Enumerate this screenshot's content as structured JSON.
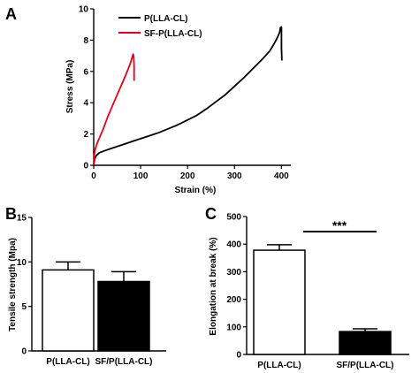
{
  "panels": [
    "A",
    "B",
    "C"
  ],
  "chart_data": [
    {
      "panel": "A",
      "type": "line",
      "xlabel": "Strain (%)",
      "ylabel": "Stress (MPa)",
      "xlim": [
        0,
        420
      ],
      "ylim": [
        0,
        10
      ],
      "xticks": [
        "0",
        "100",
        "200",
        "300",
        "400"
      ],
      "yticks": [
        "0",
        "2",
        "4",
        "6",
        "8",
        "10"
      ],
      "legend_position": "top-center",
      "series": [
        {
          "name": "P(LLA-CL)",
          "color": "#000000",
          "points": [
            [
              0,
              0
            ],
            [
              2,
              0.4
            ],
            [
              5,
              0.6
            ],
            [
              12,
              0.8
            ],
            [
              25,
              0.95
            ],
            [
              40,
              1.1
            ],
            [
              60,
              1.3
            ],
            [
              80,
              1.5
            ],
            [
              100,
              1.7
            ],
            [
              120,
              1.9
            ],
            [
              140,
              2.1
            ],
            [
              160,
              2.35
            ],
            [
              180,
              2.6
            ],
            [
              200,
              2.9
            ],
            [
              220,
              3.2
            ],
            [
              240,
              3.6
            ],
            [
              260,
              4.05
            ],
            [
              280,
              4.5
            ],
            [
              300,
              5.05
            ],
            [
              320,
              5.6
            ],
            [
              340,
              6.2
            ],
            [
              360,
              6.8
            ],
            [
              375,
              7.3
            ],
            [
              385,
              7.8
            ],
            [
              392,
              8.2
            ],
            [
              396,
              8.5
            ],
            [
              398,
              8.8
            ],
            [
              400,
              8.85
            ],
            [
              400,
              7.5
            ],
            [
              401,
              6.7
            ]
          ]
        },
        {
          "name": "SF-P(LLA-CL)",
          "color": "#e3001b",
          "points": [
            [
              0,
              0
            ],
            [
              1,
              0.6
            ],
            [
              3,
              1.0
            ],
            [
              6,
              1.3
            ],
            [
              10,
              1.6
            ],
            [
              20,
              2.3
            ],
            [
              30,
              3.1
            ],
            [
              40,
              3.8
            ],
            [
              50,
              4.5
            ],
            [
              60,
              5.2
            ],
            [
              70,
              5.9
            ],
            [
              78,
              6.5
            ],
            [
              82,
              6.9
            ],
            [
              84,
              7.1
            ],
            [
              85,
              7.0
            ],
            [
              86,
              6.4
            ],
            [
              86,
              5.4
            ]
          ]
        }
      ]
    },
    {
      "panel": "B",
      "type": "bar",
      "ylabel": "Tensile strength (Mpa)",
      "ylim": [
        0,
        15
      ],
      "yticks": [
        "0",
        "5",
        "10",
        "15"
      ],
      "categories": [
        "P(LLA-CL)",
        "SF/P(LLA-CL)"
      ],
      "values": [
        9.1,
        7.8
      ],
      "errors": [
        0.9,
        1.1
      ],
      "fills": [
        "#ffffff",
        "#000000"
      ]
    },
    {
      "panel": "C",
      "type": "bar",
      "ylabel": "Elongation at break (%)",
      "ylim": [
        0,
        500
      ],
      "yticks": [
        "0",
        "100",
        "200",
        "300",
        "400",
        "500"
      ],
      "categories": [
        "P(LLA-CL)",
        "SF/P(LLA-CL)"
      ],
      "values": [
        378,
        83
      ],
      "errors": [
        20,
        10
      ],
      "fills": [
        "#ffffff",
        "#000000"
      ],
      "significance": "***"
    }
  ]
}
